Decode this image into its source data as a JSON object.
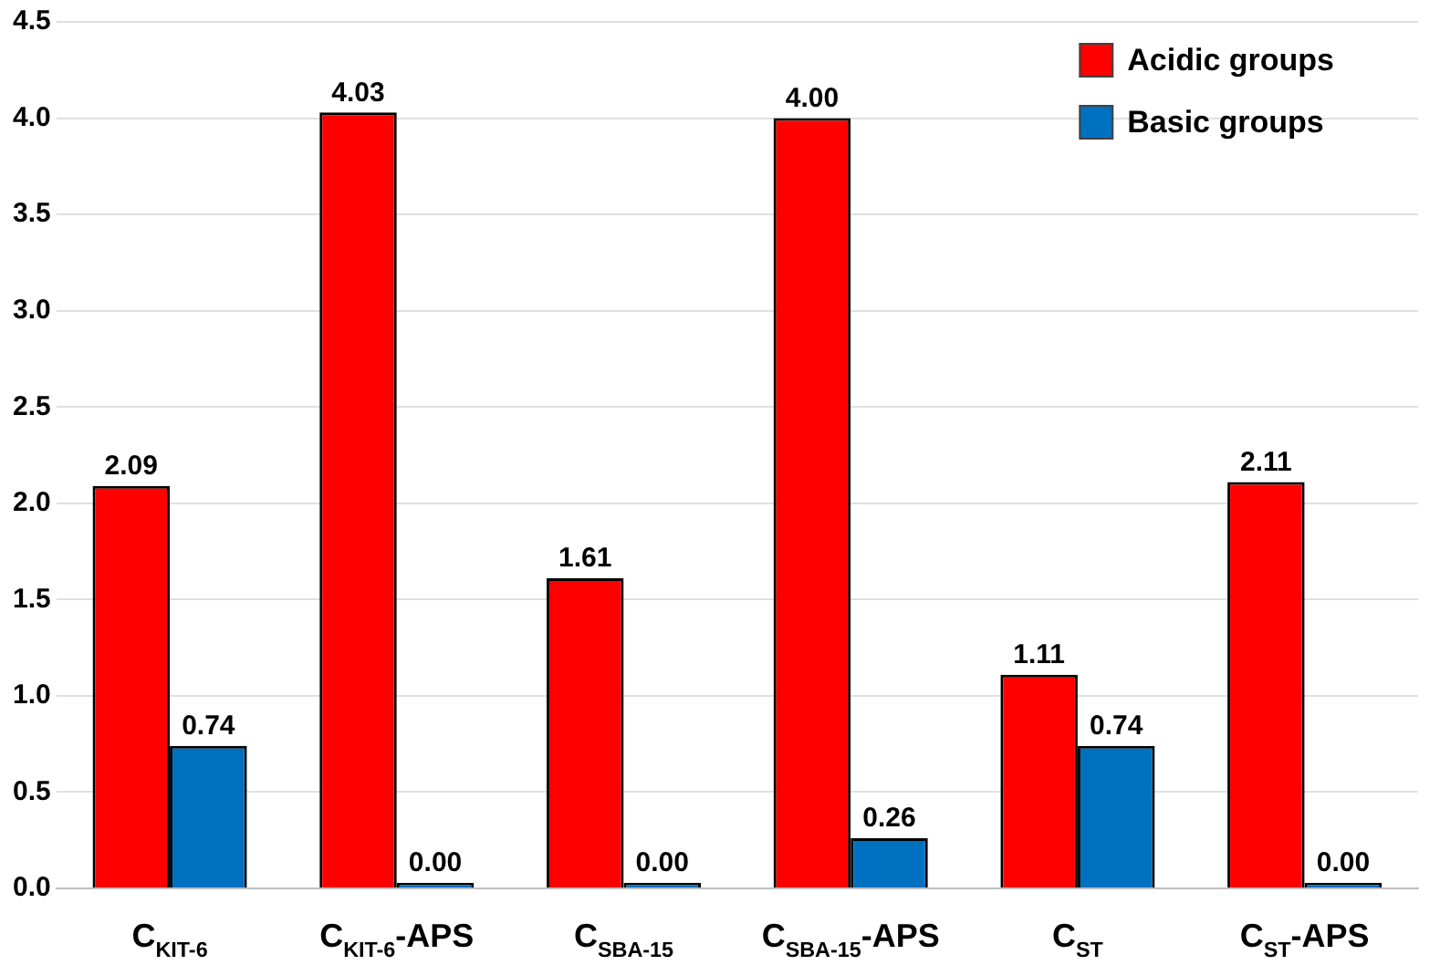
{
  "chart_data": {
    "type": "bar",
    "categories": [
      "C$_{KIT-6}$",
      "C$_{KIT-6}$-APS",
      "C$_{SBA-15}$",
      "C$_{SBA-15}$-APS",
      "C$_{ST}$",
      "C$_{ST}$-APS"
    ],
    "series": [
      {
        "name": "Acidic groups",
        "color": "#ff0000",
        "values": [
          2.09,
          4.03,
          1.61,
          4.0,
          1.11,
          2.11
        ],
        "value_labels": [
          "2.09",
          "4.03",
          "1.61",
          "4.00",
          "1.11",
          "2.11"
        ]
      },
      {
        "name": "Basic groups",
        "color": "#0070c0",
        "values": [
          0.74,
          0.0,
          0.0,
          0.26,
          0.74,
          0.0
        ],
        "value_labels": [
          "0.74",
          "0.00",
          "0.00",
          "0.26",
          "0.74",
          "0.00"
        ]
      }
    ],
    "ylim": [
      0,
      4.5
    ],
    "yticks": [
      {
        "value": 0,
        "label": "0.0"
      },
      {
        "value": 0.5,
        "label": "0.5"
      },
      {
        "value": 1,
        "label": "1.0"
      },
      {
        "value": 1.5,
        "label": "1.5"
      },
      {
        "value": 2,
        "label": "2.0"
      },
      {
        "value": 2.5,
        "label": "2.5"
      },
      {
        "value": 3,
        "label": "3.0"
      },
      {
        "value": 3.5,
        "label": "3.5"
      },
      {
        "value": 4,
        "label": "4.0"
      },
      {
        "value": 4.5,
        "label": "4.5"
      }
    ],
    "grid": "y",
    "legend": "top right"
  }
}
